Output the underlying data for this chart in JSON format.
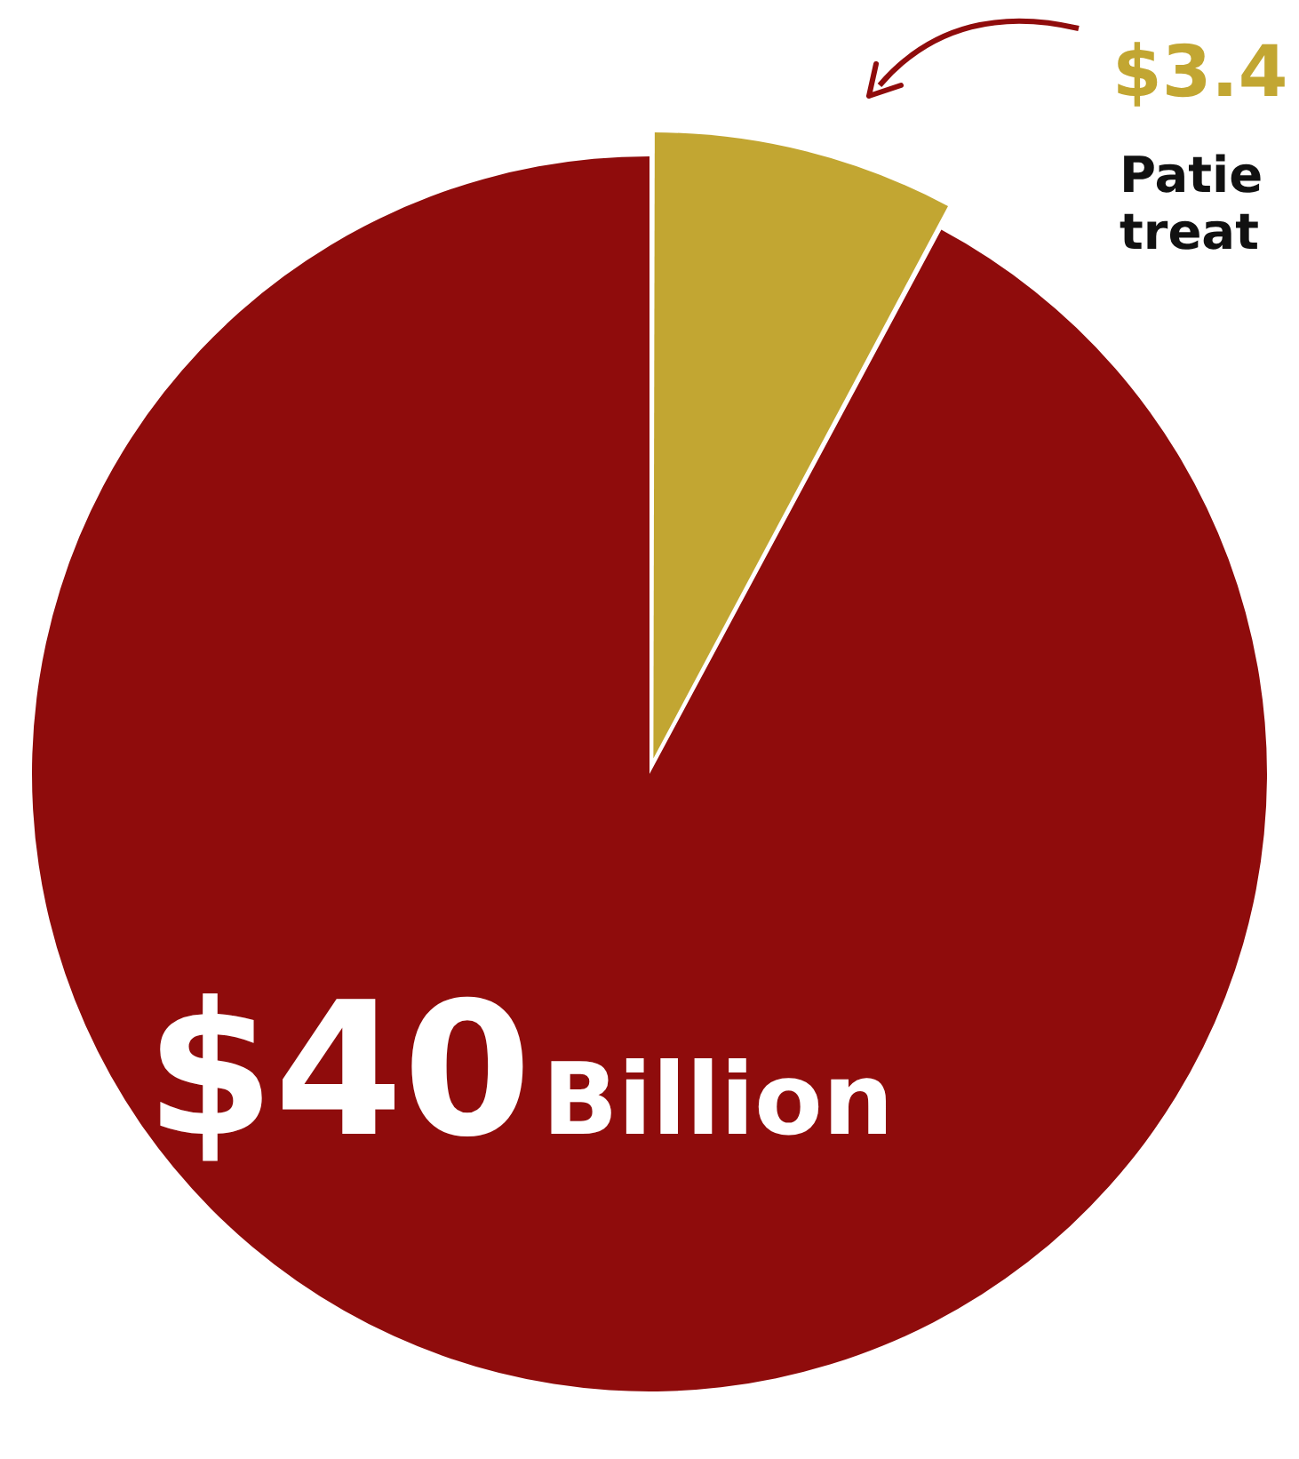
{
  "chart_data": {
    "type": "pie",
    "categories": [
      null,
      null
    ],
    "values": [
      3.4,
      40
    ],
    "colors": [
      "#c2a632",
      "#8f0c0c"
    ],
    "value_labels": [
      null,
      "$40Billion"
    ],
    "annotations": [
      "$3.4",
      "Patie",
      "treat"
    ],
    "legend": false
  }
}
